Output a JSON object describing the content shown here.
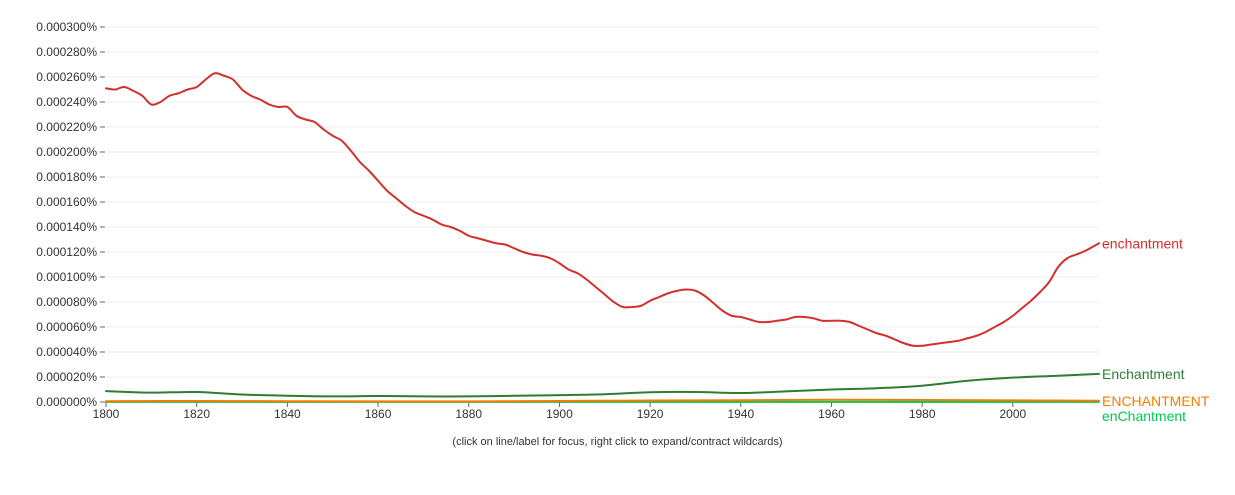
{
  "chart_data": {
    "type": "line",
    "title": "",
    "xlabel": "",
    "ylabel": "",
    "xlim": [
      1800,
      2019
    ],
    "ylim": [
      0,
      0.0003
    ],
    "x_ticks": [
      1800,
      1820,
      1840,
      1860,
      1880,
      1900,
      1920,
      1940,
      1960,
      1980,
      2000
    ],
    "x_tick_labels": [
      "1800",
      "1820",
      "1840",
      "1860",
      "1880",
      "1900",
      "1920",
      "1940",
      "1960",
      "1980",
      "2000"
    ],
    "y_ticks": [
      0,
      2e-05,
      4e-05,
      6e-05,
      8e-05,
      0.0001,
      0.00012,
      0.00014,
      0.00016,
      0.00018,
      0.0002,
      0.00022,
      0.00024,
      0.00026,
      0.00028,
      0.0003
    ],
    "y_tick_labels": [
      "0.000000%",
      "0.000020%",
      "0.000040%",
      "0.000060%",
      "0.000080%",
      "0.000100%",
      "0.000120%",
      "0.000140%",
      "0.000160%",
      "0.000180%",
      "0.000200%",
      "0.000220%",
      "0.000240%",
      "0.000260%",
      "0.000280%",
      "0.000300%"
    ],
    "grid": true,
    "legend_placement": "inline-right",
    "series": [
      {
        "name": "enchantment",
        "color": "#d32f2f",
        "x": [
          1800,
          1802,
          1804,
          1806,
          1808,
          1810,
          1812,
          1814,
          1816,
          1818,
          1820,
          1822,
          1824,
          1826,
          1828,
          1830,
          1832,
          1834,
          1836,
          1838,
          1840,
          1842,
          1844,
          1846,
          1848,
          1850,
          1852,
          1854,
          1856,
          1858,
          1860,
          1862,
          1864,
          1866,
          1868,
          1870,
          1872,
          1874,
          1876,
          1878,
          1880,
          1882,
          1884,
          1886,
          1888,
          1890,
          1892,
          1894,
          1896,
          1898,
          1900,
          1902,
          1904,
          1906,
          1908,
          1910,
          1912,
          1914,
          1916,
          1918,
          1920,
          1922,
          1924,
          1926,
          1928,
          1930,
          1932,
          1934,
          1936,
          1938,
          1940,
          1942,
          1944,
          1946,
          1948,
          1950,
          1952,
          1954,
          1956,
          1958,
          1960,
          1962,
          1964,
          1966,
          1968,
          1970,
          1972,
          1974,
          1976,
          1978,
          1980,
          1982,
          1984,
          1986,
          1988,
          1990,
          1992,
          1994,
          1996,
          1998,
          2000,
          2002,
          2004,
          2006,
          2008,
          2010,
          2012,
          2014,
          2016,
          2019
        ],
        "values": [
          0.000251,
          0.00025,
          0.000252,
          0.000249,
          0.000245,
          0.000238,
          0.00024,
          0.000245,
          0.000247,
          0.00025,
          0.000252,
          0.000258,
          0.000263,
          0.000261,
          0.000258,
          0.00025,
          0.000245,
          0.000242,
          0.000238,
          0.000236,
          0.000236,
          0.000229,
          0.000226,
          0.000224,
          0.000218,
          0.000213,
          0.000209,
          0.000201,
          0.000192,
          0.000185,
          0.000177,
          0.000169,
          0.000163,
          0.000157,
          0.000152,
          0.000149,
          0.000146,
          0.000142,
          0.00014,
          0.000137,
          0.000133,
          0.000131,
          0.000129,
          0.000127,
          0.000126,
          0.000123,
          0.00012,
          0.000118,
          0.000117,
          0.000115,
          0.000111,
          0.000106,
          0.000103,
          9.8e-05,
          9.2e-05,
          8.6e-05,
          8e-05,
          7.6e-05,
          7.6e-05,
          7.7e-05,
          8.1e-05,
          8.4e-05,
          8.7e-05,
          8.9e-05,
          9e-05,
          8.9e-05,
          8.5e-05,
          7.9e-05,
          7.3e-05,
          6.9e-05,
          6.8e-05,
          6.6e-05,
          6.4e-05,
          6.4e-05,
          6.5e-05,
          6.6e-05,
          6.8e-05,
          6.8e-05,
          6.7e-05,
          6.5e-05,
          6.5e-05,
          6.5e-05,
          6.4e-05,
          6.1e-05,
          5.8e-05,
          5.5e-05,
          5.3e-05,
          5e-05,
          4.7e-05,
          4.5e-05,
          4.5e-05,
          4.6e-05,
          4.7e-05,
          4.8e-05,
          4.9e-05,
          5.1e-05,
          5.3e-05,
          5.6e-05,
          6e-05,
          6.4e-05,
          6.9e-05,
          7.5e-05,
          8.1e-05,
          8.8e-05,
          9.6e-05,
          0.000108,
          0.000115,
          0.000118,
          0.000121,
          0.000127
        ]
      },
      {
        "name": "Enchantment",
        "color": "#2e7d32",
        "x": [
          1800,
          1810,
          1820,
          1830,
          1840,
          1850,
          1860,
          1870,
          1880,
          1890,
          1900,
          1910,
          1920,
          1930,
          1940,
          1950,
          1960,
          1970,
          1980,
          1990,
          2000,
          2010,
          2019
        ],
        "values": [
          8.7e-06,
          7.5e-06,
          8e-06,
          6e-06,
          5e-06,
          4.5e-06,
          4.8e-06,
          4.5e-06,
          4.5e-06,
          5e-06,
          5.5e-06,
          6.2e-06,
          7.8e-06,
          8e-06,
          7.2e-06,
          8.5e-06,
          1e-05,
          1.1e-05,
          1.3e-05,
          1.7e-05,
          1.95e-05,
          2.1e-05,
          2.25e-05
        ]
      },
      {
        "name": "ENCHANTMENT",
        "color": "#f57c00",
        "x": [
          1800,
          1820,
          1840,
          1860,
          1880,
          1900,
          1920,
          1940,
          1960,
          1980,
          2000,
          2019
        ],
        "values": [
          6e-07,
          8e-07,
          6e-07,
          5e-07,
          5e-07,
          8e-07,
          1.2e-06,
          1.4e-06,
          1.8e-06,
          1.6e-06,
          1.3e-06,
          1e-06
        ]
      },
      {
        "name": "enChantment",
        "color": "#00c853",
        "x": [
          1800,
          1850,
          1900,
          1950,
          2000,
          2019
        ],
        "values": [
          1e-07,
          1e-07,
          1e-07,
          1e-07,
          1e-07,
          1e-07
        ]
      }
    ]
  },
  "footnote": "(click on line/label for focus, right click to expand/contract wildcards)"
}
